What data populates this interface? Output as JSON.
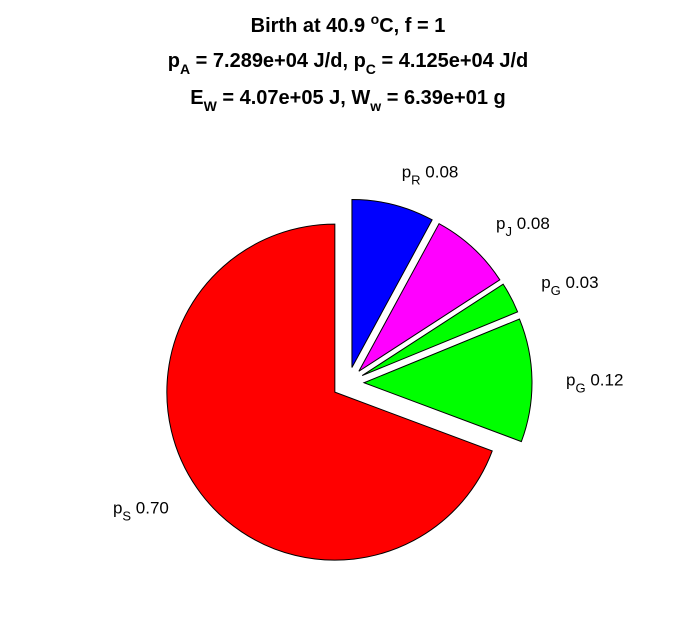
{
  "title": {
    "line1": {
      "pre": "Birth at 40.9 ",
      "sup": "o",
      "post": "C, f = 1"
    },
    "line2": {
      "a": "p",
      "a_sub": "A",
      "a_rest": " = 7.289e+04 J/d, ",
      "b": "p",
      "b_sub": "C",
      "b_rest": " = 4.125e+04 J/d"
    },
    "line3": {
      "a": "E",
      "a_sub": "W",
      "a_rest": " = 4.07e+05 J, ",
      "b": "W",
      "b_sub": "w",
      "b_rest": " = 6.39e+01 g"
    }
  },
  "chart_data": {
    "type": "pie",
    "exploded": true,
    "slices": [
      {
        "label_main": "p",
        "label_sub": "R",
        "value": 0.08,
        "value_text": "0.08",
        "color": "#0000ff"
      },
      {
        "label_main": "p",
        "label_sub": "J",
        "value": 0.08,
        "value_text": "0.08",
        "color": "#ff00ff"
      },
      {
        "label_main": "p",
        "label_sub": "G",
        "value": 0.03,
        "value_text": "0.03",
        "color": "#00ff00"
      },
      {
        "label_main": "p",
        "label_sub": "G",
        "value": 0.12,
        "value_text": "0.12",
        "color": "#00ff00"
      },
      {
        "label_main": "p",
        "label_sub": "S",
        "value": 0.7,
        "value_text": "0.70",
        "color": "#ff0000"
      }
    ]
  }
}
